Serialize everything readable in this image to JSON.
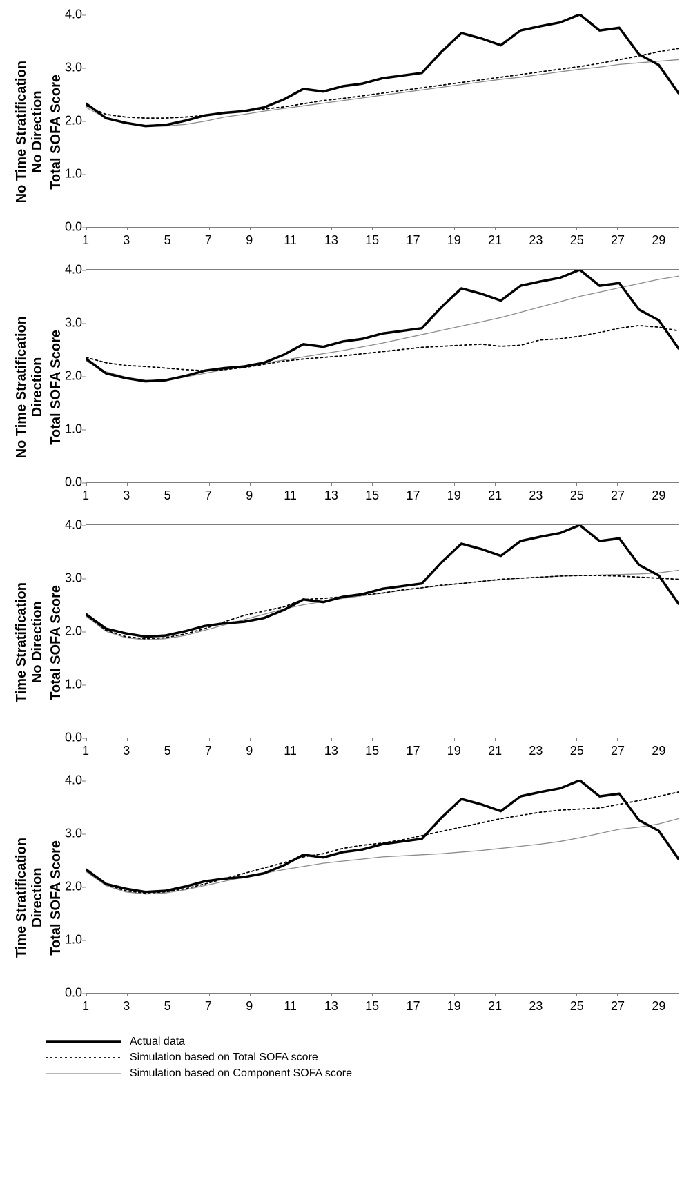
{
  "figure": {
    "background_color": "#ffffff",
    "plot_border_color": "#7f7f7f",
    "font_family": "Arial",
    "label_fontsize": 20,
    "tick_fontsize": 18,
    "legend_fontsize": 16,
    "x_start": 1,
    "x_end": 30,
    "x_tick_step": 2,
    "x_ticks": [
      1,
      3,
      5,
      7,
      9,
      11,
      13,
      15,
      17,
      19,
      21,
      23,
      25,
      27,
      29
    ],
    "y_min": 0.0,
    "y_max": 4.0,
    "y_tick_step": 1.0,
    "y_ticks": [
      "0.0",
      "1.0",
      "2.0",
      "3.0",
      "4.0"
    ],
    "y_axis_label": "Total SOFA Score",
    "series_styles": {
      "actual": {
        "color": "#000000",
        "width": 3.5,
        "dash": ""
      },
      "total": {
        "color": "#000000",
        "width": 1.8,
        "dash": "3 4"
      },
      "component": {
        "color": "#8c8c8c",
        "width": 1.3,
        "dash": ""
      }
    },
    "legend": [
      {
        "key": "actual",
        "label": "Actual data"
      },
      {
        "key": "total",
        "label": "Simulation based on Total SOFA score"
      },
      {
        "key": "component",
        "label": "Simulation based on Component SOFA score"
      }
    ],
    "panels": [
      {
        "id": "p1",
        "left_label_top": "No Time Stratification",
        "left_label_bottom": "No Direction",
        "series": {
          "actual": [
            2.32,
            2.05,
            1.96,
            1.9,
            1.92,
            2.0,
            2.1,
            2.15,
            2.18,
            2.25,
            2.4,
            2.6,
            2.55,
            2.65,
            2.7,
            2.8,
            2.85,
            2.9,
            3.3,
            3.65,
            3.55,
            3.42,
            3.7,
            3.78,
            3.85,
            4.0,
            3.7,
            3.75,
            3.25,
            3.05,
            2.52
          ],
          "total": [
            2.28,
            2.12,
            2.07,
            2.05,
            2.05,
            2.07,
            2.1,
            2.14,
            2.18,
            2.22,
            2.26,
            2.32,
            2.38,
            2.42,
            2.47,
            2.52,
            2.57,
            2.62,
            2.67,
            2.72,
            2.77,
            2.82,
            2.87,
            2.92,
            2.97,
            3.02,
            3.08,
            3.15,
            3.22,
            3.3,
            3.36
          ],
          "component": [
            2.25,
            2.05,
            1.95,
            1.9,
            1.9,
            1.93,
            1.99,
            2.07,
            2.12,
            2.18,
            2.23,
            2.28,
            2.33,
            2.38,
            2.43,
            2.48,
            2.53,
            2.58,
            2.63,
            2.68,
            2.73,
            2.78,
            2.82,
            2.87,
            2.92,
            2.97,
            3.01,
            3.06,
            3.09,
            3.12,
            3.15
          ]
        }
      },
      {
        "id": "p2",
        "left_label_top": "No Time Stratification",
        "left_label_bottom": "Direction",
        "series": {
          "actual": [
            2.32,
            2.05,
            1.96,
            1.9,
            1.92,
            2.0,
            2.1,
            2.15,
            2.18,
            2.25,
            2.4,
            2.6,
            2.55,
            2.65,
            2.7,
            2.8,
            2.85,
            2.9,
            3.3,
            3.65,
            3.55,
            3.42,
            3.7,
            3.78,
            3.85,
            4.0,
            3.7,
            3.75,
            3.25,
            3.05,
            2.52
          ],
          "total": [
            2.35,
            2.25,
            2.2,
            2.18,
            2.15,
            2.12,
            2.1,
            2.12,
            2.16,
            2.22,
            2.28,
            2.32,
            2.35,
            2.38,
            2.42,
            2.46,
            2.5,
            2.54,
            2.56,
            2.58,
            2.6,
            2.56,
            2.58,
            2.68,
            2.7,
            2.75,
            2.82,
            2.9,
            2.95,
            2.92,
            2.85
          ],
          "component": [
            2.28,
            2.08,
            1.98,
            1.92,
            1.92,
            1.98,
            2.05,
            2.12,
            2.18,
            2.24,
            2.3,
            2.36,
            2.42,
            2.48,
            2.55,
            2.62,
            2.7,
            2.78,
            2.86,
            2.94,
            3.02,
            3.1,
            3.2,
            3.3,
            3.4,
            3.5,
            3.58,
            3.66,
            3.74,
            3.82,
            3.88
          ]
        }
      },
      {
        "id": "p3",
        "left_label_top": "Time Stratification",
        "left_label_bottom": "No Direction",
        "series": {
          "actual": [
            2.32,
            2.05,
            1.96,
            1.9,
            1.92,
            2.0,
            2.1,
            2.15,
            2.18,
            2.25,
            2.4,
            2.6,
            2.55,
            2.65,
            2.7,
            2.8,
            2.85,
            2.9,
            3.3,
            3.65,
            3.55,
            3.42,
            3.7,
            3.78,
            3.85,
            4.0,
            3.7,
            3.75,
            3.25,
            3.05,
            2.52
          ],
          "total": [
            2.3,
            2.02,
            1.9,
            1.86,
            1.88,
            1.95,
            2.05,
            2.18,
            2.3,
            2.38,
            2.46,
            2.6,
            2.62,
            2.65,
            2.68,
            2.72,
            2.78,
            2.82,
            2.87,
            2.9,
            2.94,
            2.98,
            3.0,
            3.02,
            3.04,
            3.05,
            3.05,
            3.04,
            3.02,
            3.0,
            2.98
          ],
          "component": [
            2.28,
            2.0,
            1.88,
            1.84,
            1.86,
            1.92,
            2.02,
            2.12,
            2.22,
            2.32,
            2.42,
            2.5,
            2.56,
            2.62,
            2.67,
            2.72,
            2.77,
            2.82,
            2.86,
            2.9,
            2.94,
            2.97,
            3.0,
            3.02,
            3.04,
            3.05,
            3.06,
            3.07,
            3.08,
            3.1,
            3.15
          ]
        }
      },
      {
        "id": "p4",
        "left_label_top": "Time Stratification",
        "left_label_bottom": "Direction",
        "series": {
          "actual": [
            2.32,
            2.05,
            1.96,
            1.9,
            1.92,
            2.0,
            2.1,
            2.15,
            2.18,
            2.25,
            2.4,
            2.6,
            2.55,
            2.65,
            2.7,
            2.8,
            2.85,
            2.9,
            3.3,
            3.65,
            3.55,
            3.42,
            3.7,
            3.78,
            3.85,
            4.0,
            3.7,
            3.75,
            3.25,
            3.05,
            2.52
          ],
          "total": [
            2.3,
            2.04,
            1.92,
            1.88,
            1.9,
            1.96,
            2.05,
            2.15,
            2.25,
            2.35,
            2.45,
            2.56,
            2.62,
            2.72,
            2.78,
            2.82,
            2.88,
            2.96,
            3.04,
            3.12,
            3.2,
            3.28,
            3.34,
            3.4,
            3.44,
            3.46,
            3.48,
            3.55,
            3.62,
            3.7,
            3.78
          ],
          "component": [
            2.28,
            2.02,
            1.9,
            1.86,
            1.88,
            1.94,
            2.02,
            2.1,
            2.18,
            2.25,
            2.32,
            2.38,
            2.44,
            2.48,
            2.52,
            2.56,
            2.58,
            2.6,
            2.62,
            2.65,
            2.68,
            2.72,
            2.76,
            2.8,
            2.85,
            2.92,
            3.0,
            3.08,
            3.12,
            3.18,
            3.28
          ]
        }
      }
    ]
  }
}
